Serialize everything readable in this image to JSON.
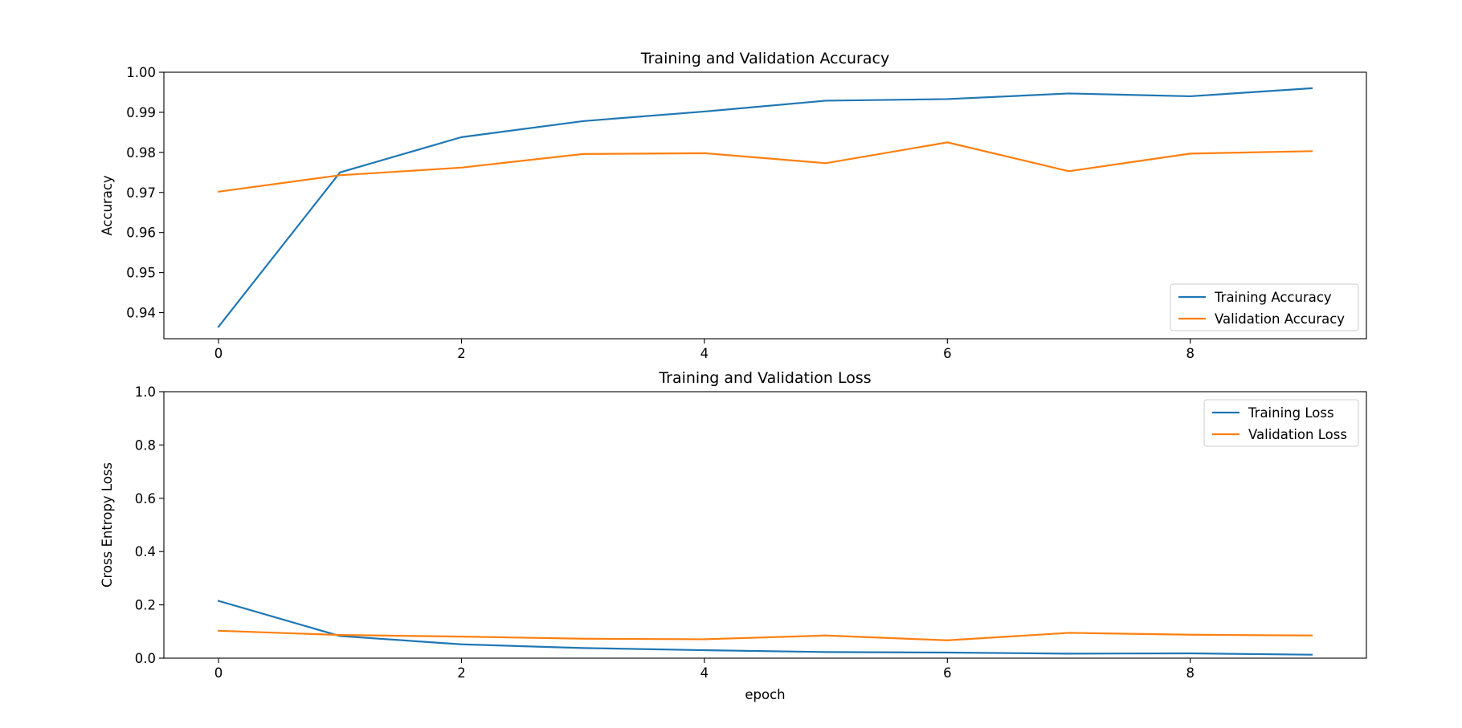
{
  "chart_data": [
    {
      "type": "line",
      "title": "Training and Validation Accuracy",
      "xlabel": "",
      "ylabel": "Accuracy",
      "x": [
        0,
        1,
        2,
        3,
        4,
        5,
        6,
        7,
        8,
        9
      ],
      "xlim": [
        -0.45,
        9.45
      ],
      "ylim": [
        0.9335,
        1.0
      ],
      "xticks": [
        0,
        2,
        4,
        6,
        8
      ],
      "yticks": [
        0.94,
        0.95,
        0.96,
        0.97,
        0.98,
        0.99,
        1.0
      ],
      "ytick_decimals": 2,
      "legend_position": "lower-right",
      "grid": false,
      "series": [
        {
          "name": "Training Accuracy",
          "color": "#1f77b4",
          "values": [
            0.9365,
            0.975,
            0.9838,
            0.9878,
            0.9902,
            0.9929,
            0.9933,
            0.9947,
            0.994,
            0.996
          ]
        },
        {
          "name": "Validation Accuracy",
          "color": "#ff7f0e",
          "values": [
            0.9702,
            0.9743,
            0.9762,
            0.9796,
            0.9798,
            0.9773,
            0.9825,
            0.9753,
            0.9797,
            0.9803
          ]
        }
      ]
    },
    {
      "type": "line",
      "title": "Training and Validation Loss",
      "xlabel": "epoch",
      "ylabel": "Cross Entropy Loss",
      "x": [
        0,
        1,
        2,
        3,
        4,
        5,
        6,
        7,
        8,
        9
      ],
      "xlim": [
        -0.45,
        9.45
      ],
      "ylim": [
        0.0,
        1.0
      ],
      "xticks": [
        0,
        2,
        4,
        6,
        8
      ],
      "yticks": [
        0.0,
        0.2,
        0.4,
        0.6,
        0.8,
        1.0
      ],
      "ytick_decimals": 1,
      "legend_position": "upper-right",
      "grid": false,
      "series": [
        {
          "name": "Training Loss",
          "color": "#1f77b4",
          "values": [
            0.215,
            0.083,
            0.052,
            0.038,
            0.03,
            0.023,
            0.021,
            0.017,
            0.018,
            0.013
          ]
        },
        {
          "name": "Validation Loss",
          "color": "#ff7f0e",
          "values": [
            0.103,
            0.087,
            0.081,
            0.073,
            0.071,
            0.085,
            0.067,
            0.095,
            0.088,
            0.085
          ]
        }
      ]
    }
  ]
}
